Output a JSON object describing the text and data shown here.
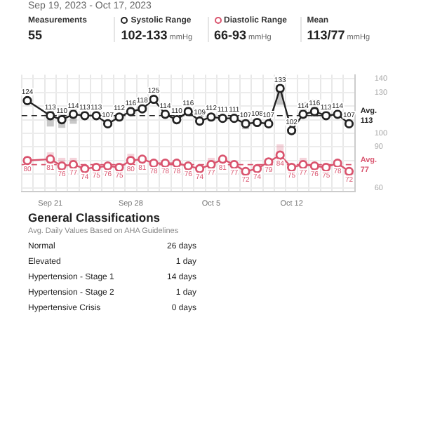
{
  "chart_data": [
    {
      "type": "other",
      "annotations": [
        "Sep 19, 2023 - Oct 17, 2023",
        "Measurements",
        "55",
        "Systolic Range",
        "102-133 mmHg",
        "Diastolic Range",
        "66-93 mmHg",
        "Mean",
        "113/77 mmHg"
      ]
    },
    {
      "type": "line",
      "categories": [
        null,
        null,
        "Sep 21",
        null,
        null,
        null,
        null,
        null,
        null,
        "Sep 28",
        null,
        null,
        null,
        null,
        null,
        null,
        "Oct 5",
        null,
        null,
        null,
        null,
        null,
        null,
        "Oct 12",
        null,
        null,
        null,
        null,
        null
      ],
      "series": [
        {
          "color": "#222222",
          "values": [
            124,
            null,
            113,
            110,
            114,
            113,
            113,
            107,
            112,
            116,
            118,
            125,
            114,
            110,
            116,
            109,
            112,
            111,
            111,
            107,
            108,
            107,
            133,
            102,
            114,
            116,
            113,
            114,
            107
          ],
          "errors": [
            null,
            null,
            [
              105,
              119
            ],
            [
              104,
              116
            ],
            [
              107,
              120
            ],
            null,
            null,
            null,
            null,
            null,
            null,
            null,
            null,
            null,
            null,
            null,
            null,
            null,
            null,
            [
              103,
              110
            ],
            null,
            null,
            [
              121,
              133
            ],
            null,
            [
              111,
              123
            ],
            [
              112,
              125
            ],
            null,
            null,
            null
          ]
        },
        {
          "color": "#d9546e",
          "values": [
            80,
            null,
            81,
            76,
            77,
            74,
            75,
            76,
            75,
            80,
            81,
            78,
            78,
            78,
            76,
            74,
            77,
            81,
            77,
            72,
            74,
            79,
            84,
            75,
            77,
            76,
            75,
            78,
            72
          ],
          "errors": [
            null,
            null,
            [
              78,
              86
            ],
            [
              70,
              82
            ],
            [
              72,
              82
            ],
            null,
            null,
            null,
            null,
            [
              78,
              85
            ],
            null,
            null,
            null,
            null,
            null,
            null,
            [
              71,
              82
            ],
            null,
            null,
            null,
            null,
            null,
            [
              77,
              92
            ],
            null,
            [
              73,
              82
            ],
            null,
            null,
            null,
            null
          ]
        }
      ],
      "ylim": [
        57,
        143
      ],
      "yticks": [
        60,
        {
          "value": 70,
          "label": null
        },
        {
          "value": 80,
          "label": null
        },
        90,
        100,
        {
          "value": 110,
          "label": null
        },
        {
          "value": 120,
          "label": null
        },
        130,
        140
      ],
      "ref_lines": [
        {
          "axis": "y",
          "value": 113,
          "label": "Avg. 113",
          "color": "#222222",
          "line_style": "dashed"
        },
        {
          "axis": "y",
          "value": 77,
          "label": "Avg. 77",
          "color": "#d9546e",
          "line_style": "dashed"
        }
      ],
      "grid": true,
      "legend": false,
      "marker": "circle",
      "line_style": "solid",
      "data_labels": true
    },
    {
      "type": "other",
      "title": "General Classifications",
      "subtitle": "Avg. Daily Values Based on AHA Guidelines",
      "annotations": [
        "Normal",
        "26 days",
        "Elevated",
        "1 day",
        "Hypertension - Stage 1",
        "14 days",
        "Hypertension - Stage 2",
        "1 day",
        "Hypertensive Crisis",
        "0 days"
      ]
    }
  ]
}
